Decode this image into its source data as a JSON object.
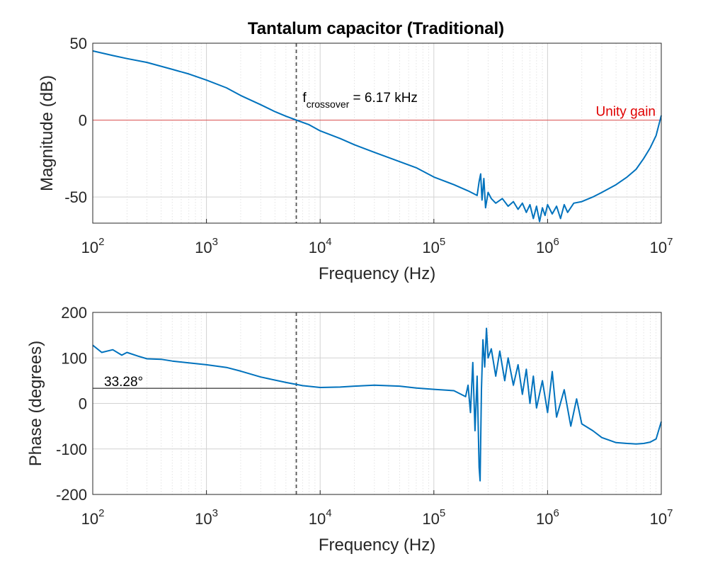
{
  "chart_data": [
    {
      "type": "line",
      "title": "Tantalum capacitor (Traditional)",
      "xlabel": "Frequency (Hz)",
      "ylabel": "Magnitude (dB)",
      "xscale": "log",
      "xlim": [
        100,
        10000000
      ],
      "ylim": [
        -67,
        50
      ],
      "grid": true,
      "xticks": [
        {
          "base": "10",
          "exp": "2"
        },
        {
          "base": "10",
          "exp": "3"
        },
        {
          "base": "10",
          "exp": "4"
        },
        {
          "base": "10",
          "exp": "5"
        },
        {
          "base": "10",
          "exp": "6"
        },
        {
          "base": "10",
          "exp": "7"
        }
      ],
      "yticks": [
        {
          "value": 50,
          "label": "50"
        },
        {
          "value": 0,
          "label": "0"
        },
        {
          "value": -50,
          "label": "-50"
        }
      ],
      "series_color": "#0072BD",
      "series": [
        {
          "name": "Magnitude",
          "points": [
            [
              100,
              45
            ],
            [
              150,
              42
            ],
            [
              200,
              40
            ],
            [
              300,
              37.5
            ],
            [
              500,
              33
            ],
            [
              700,
              30
            ],
            [
              1000,
              26
            ],
            [
              1500,
              21
            ],
            [
              2000,
              16
            ],
            [
              3000,
              10
            ],
            [
              4000,
              5.5
            ],
            [
              5000,
              2.5
            ],
            [
              6170,
              0
            ],
            [
              8000,
              -3
            ],
            [
              10000,
              -7
            ],
            [
              15000,
              -12
            ],
            [
              20000,
              -16
            ],
            [
              30000,
              -21
            ],
            [
              50000,
              -27
            ],
            [
              70000,
              -31
            ],
            [
              100000,
              -37
            ],
            [
              150000,
              -42
            ],
            [
              200000,
              -46
            ],
            [
              240000,
              -49
            ],
            [
              250000,
              -40
            ],
            [
              258000,
              -35
            ],
            [
              265000,
              -52
            ],
            [
              275000,
              -38
            ],
            [
              285000,
              -57
            ],
            [
              300000,
              -47
            ],
            [
              320000,
              -51
            ],
            [
              350000,
              -54
            ],
            [
              400000,
              -51
            ],
            [
              450000,
              -56
            ],
            [
              500000,
              -53
            ],
            [
              550000,
              -58
            ],
            [
              600000,
              -54
            ],
            [
              650000,
              -60
            ],
            [
              700000,
              -55
            ],
            [
              750000,
              -64
            ],
            [
              800000,
              -56
            ],
            [
              850000,
              -66
            ],
            [
              900000,
              -57
            ],
            [
              950000,
              -62
            ],
            [
              1000000,
              -55
            ],
            [
              1100000,
              -61
            ],
            [
              1200000,
              -56
            ],
            [
              1300000,
              -64
            ],
            [
              1400000,
              -55
            ],
            [
              1500000,
              -60
            ],
            [
              1700000,
              -54
            ],
            [
              2000000,
              -53
            ],
            [
              2500000,
              -50
            ],
            [
              3000000,
              -47
            ],
            [
              4000000,
              -42
            ],
            [
              5000000,
              -37
            ],
            [
              6000000,
              -32
            ],
            [
              7000000,
              -25
            ],
            [
              8000000,
              -18
            ],
            [
              9000000,
              -10
            ],
            [
              10000000,
              3
            ]
          ]
        }
      ],
      "reference_lines": [
        {
          "orientation": "horizontal",
          "value": 0,
          "label": "Unity gain",
          "color": "#e00000"
        },
        {
          "orientation": "vertical",
          "value": 6170,
          "style": "dashed",
          "color": "#555555"
        }
      ],
      "annotation": {
        "text_main": "f",
        "text_sub": "crossover",
        "text_rest": " = 6.17 kHz",
        "x": 7000,
        "y": 9
      }
    },
    {
      "type": "line",
      "title": "",
      "xlabel": "Frequency (Hz)",
      "ylabel": "Phase (degrees)",
      "xscale": "log",
      "xlim": [
        100,
        10000000
      ],
      "ylim": [
        -200,
        200
      ],
      "grid": true,
      "xticks": [
        {
          "base": "10",
          "exp": "2"
        },
        {
          "base": "10",
          "exp": "3"
        },
        {
          "base": "10",
          "exp": "4"
        },
        {
          "base": "10",
          "exp": "5"
        },
        {
          "base": "10",
          "exp": "6"
        },
        {
          "base": "10",
          "exp": "7"
        }
      ],
      "yticks": [
        {
          "value": 200,
          "label": "200"
        },
        {
          "value": 100,
          "label": "100"
        },
        {
          "value": 0,
          "label": "0"
        },
        {
          "value": -100,
          "label": "-100"
        },
        {
          "value": -200,
          "label": "-200"
        }
      ],
      "series_color": "#0072BD",
      "series": [
        {
          "name": "Phase",
          "points": [
            [
              100,
              128
            ],
            [
              120,
              112
            ],
            [
              150,
              118
            ],
            [
              180,
              106
            ],
            [
              200,
              112
            ],
            [
              250,
              104
            ],
            [
              300,
              98
            ],
            [
              400,
              97
            ],
            [
              500,
              93
            ],
            [
              700,
              89
            ],
            [
              1000,
              85
            ],
            [
              1500,
              79
            ],
            [
              2000,
              71
            ],
            [
              3000,
              58
            ],
            [
              5000,
              46
            ],
            [
              7000,
              39
            ],
            [
              10000,
              35
            ],
            [
              15000,
              36
            ],
            [
              20000,
              38
            ],
            [
              30000,
              40
            ],
            [
              50000,
              38
            ],
            [
              70000,
              34
            ],
            [
              100000,
              31
            ],
            [
              150000,
              28
            ],
            [
              190000,
              15
            ],
            [
              200000,
              40
            ],
            [
              210000,
              -20
            ],
            [
              220000,
              90
            ],
            [
              230000,
              -60
            ],
            [
              240000,
              60
            ],
            [
              250000,
              -140
            ],
            [
              255000,
              -170
            ],
            [
              262000,
              30
            ],
            [
              270000,
              140
            ],
            [
              280000,
              80
            ],
            [
              290000,
              165
            ],
            [
              300000,
              100
            ],
            [
              320000,
              120
            ],
            [
              350000,
              60
            ],
            [
              380000,
              115
            ],
            [
              420000,
              50
            ],
            [
              450000,
              100
            ],
            [
              500000,
              40
            ],
            [
              550000,
              85
            ],
            [
              600000,
              20
            ],
            [
              650000,
              75
            ],
            [
              700000,
              0
            ],
            [
              750000,
              60
            ],
            [
              800000,
              -10
            ],
            [
              900000,
              50
            ],
            [
              1000000,
              -20
            ],
            [
              1100000,
              70
            ],
            [
              1200000,
              -30
            ],
            [
              1400000,
              30
            ],
            [
              1600000,
              -50
            ],
            [
              1800000,
              10
            ],
            [
              2000000,
              -45
            ],
            [
              2500000,
              -60
            ],
            [
              3000000,
              -75
            ],
            [
              4000000,
              -86
            ],
            [
              5000000,
              -88
            ],
            [
              6000000,
              -89
            ],
            [
              7000000,
              -88
            ],
            [
              8000000,
              -85
            ],
            [
              9000000,
              -78
            ],
            [
              10000000,
              -40
            ]
          ]
        }
      ],
      "reference_lines": [
        {
          "orientation": "horizontal",
          "value": 33.28,
          "label": "33.28°",
          "color": "#000000",
          "xmax": 6170
        },
        {
          "orientation": "vertical",
          "value": 6170,
          "style": "dashed",
          "color": "#555555"
        }
      ]
    }
  ]
}
